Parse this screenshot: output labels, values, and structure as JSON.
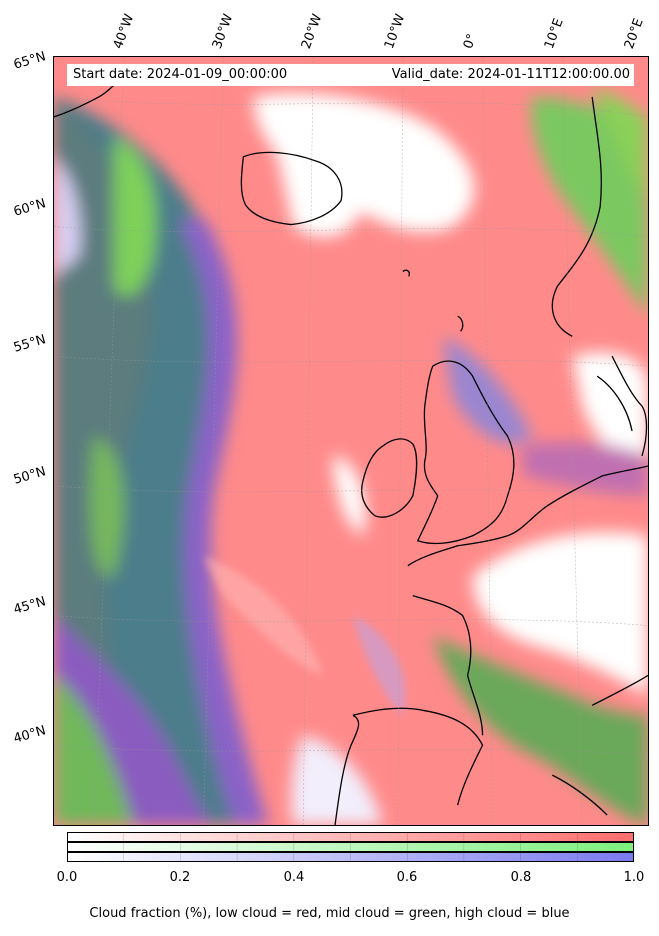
{
  "header": {
    "start_date": "Start date: 2024-01-09_00:00:00",
    "valid_date": "Valid_date: 2024-01-11T12:00:00.00"
  },
  "map": {
    "longitude_labels": [
      "40°W",
      "30°W",
      "20°W",
      "10°W",
      "0°",
      "10°E",
      "20°E"
    ],
    "latitude_labels": [
      "65°N",
      "60°N",
      "55°N",
      "50°N",
      "45°N",
      "40°N"
    ],
    "colors": {
      "low_cloud": "#ff7f7f",
      "mid_cloud": "#7fd45a",
      "high_cloud": "#6f6fe6",
      "clear": "#ffffff",
      "mixed": "#4f7f86"
    }
  },
  "colorbar": {
    "ticks": [
      "0.0",
      "0.2",
      "0.4",
      "0.6",
      "0.8",
      "1.0"
    ],
    "caption": "Cloud fraction (%), low cloud = red, mid cloud = green, high cloud = blue",
    "channels": [
      {
        "name": "low",
        "color": "#ff6e6e"
      },
      {
        "name": "mid",
        "color": "#7cf07c"
      },
      {
        "name": "high",
        "color": "#7a7af0"
      }
    ]
  }
}
